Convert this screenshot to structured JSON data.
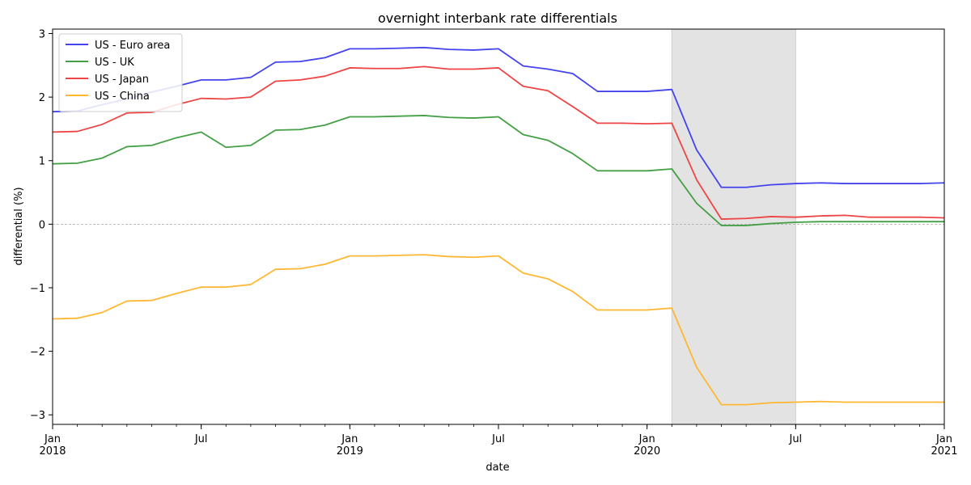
{
  "chart_data": {
    "type": "line",
    "title": "overnight interbank rate differentials",
    "xlabel": "date",
    "ylabel": "differential (%)",
    "xlim": [
      "2018-01",
      "2021-01"
    ],
    "ylim": [
      -3.15,
      3.07
    ],
    "yticks": [
      {
        "value": 3,
        "label": "3"
      },
      {
        "value": 2,
        "label": "2"
      },
      {
        "value": 1,
        "label": "1"
      },
      {
        "value": 0,
        "label": "0"
      },
      {
        "value": -1,
        "label": "−1"
      },
      {
        "value": -2,
        "label": "−2"
      },
      {
        "value": -3,
        "label": "−3"
      }
    ],
    "xticks": [
      {
        "date": "2018-01",
        "label": "Jan",
        "label2": "2018"
      },
      {
        "date": "2018-07",
        "label": "Jul",
        "label2": ""
      },
      {
        "date": "2019-01",
        "label": "Jan",
        "label2": "2019"
      },
      {
        "date": "2019-07",
        "label": "Jul",
        "label2": ""
      },
      {
        "date": "2020-01",
        "label": "Jan",
        "label2": "2020"
      },
      {
        "date": "2020-07",
        "label": "Jul",
        "label2": ""
      },
      {
        "date": "2021-01",
        "label": "Jan",
        "label2": "2021"
      }
    ],
    "zero_line": true,
    "shaded_region": {
      "start": "2020-02",
      "end": "2020-07",
      "color": "#e3e3e3"
    },
    "legend_position": "upper-left",
    "x": [
      "2018-01",
      "2018-02",
      "2018-03",
      "2018-04",
      "2018-05",
      "2018-06",
      "2018-07",
      "2018-08",
      "2018-09",
      "2018-10",
      "2018-11",
      "2018-12",
      "2019-01",
      "2019-02",
      "2019-03",
      "2019-04",
      "2019-05",
      "2019-06",
      "2019-07",
      "2019-08",
      "2019-09",
      "2019-10",
      "2019-11",
      "2019-12",
      "2020-01",
      "2020-02",
      "2020-03",
      "2020-04",
      "2020-05",
      "2020-06",
      "2020-07",
      "2020-08",
      "2020-09",
      "2020-10",
      "2020-11",
      "2020-12",
      "2021-01"
    ],
    "series": [
      {
        "name": "US - Euro area",
        "color": "#4444ee",
        "values": [
          1.77,
          1.78,
          1.88,
          1.97,
          2.08,
          2.17,
          2.27,
          2.27,
          2.31,
          2.55,
          2.56,
          2.62,
          2.76,
          2.76,
          2.77,
          2.78,
          2.75,
          2.74,
          2.76,
          2.49,
          2.44,
          2.37,
          2.09,
          2.09,
          2.09,
          2.12,
          1.17,
          0.58,
          0.58,
          0.62,
          0.64,
          0.65,
          0.64,
          0.64,
          0.64,
          0.64,
          0.65
        ]
      },
      {
        "name": "US - UK",
        "color": "#44a044",
        "values": [
          0.95,
          0.96,
          1.04,
          1.22,
          1.24,
          1.36,
          1.45,
          1.21,
          1.24,
          1.48,
          1.49,
          1.56,
          1.69,
          1.69,
          1.7,
          1.71,
          1.68,
          1.67,
          1.69,
          1.41,
          1.32,
          1.11,
          0.84,
          0.84,
          0.84,
          0.87,
          0.33,
          -0.02,
          -0.02,
          0.01,
          0.03,
          0.04,
          0.04,
          0.04,
          0.04,
          0.04,
          0.04
        ]
      },
      {
        "name": "US - Japan",
        "color": "#ee4444",
        "values": [
          1.45,
          1.46,
          1.57,
          1.75,
          1.76,
          1.88,
          1.98,
          1.97,
          2.0,
          2.25,
          2.27,
          2.33,
          2.46,
          2.45,
          2.45,
          2.48,
          2.44,
          2.44,
          2.46,
          2.17,
          2.1,
          1.85,
          1.59,
          1.59,
          1.58,
          1.59,
          0.7,
          0.08,
          0.09,
          0.12,
          0.11,
          0.13,
          0.14,
          0.11,
          0.11,
          0.11,
          0.1
        ]
      },
      {
        "name": "US - China",
        "color": "#ffb733",
        "values": [
          -1.49,
          -1.48,
          -1.39,
          -1.21,
          -1.2,
          -1.09,
          -0.99,
          -0.99,
          -0.95,
          -0.71,
          -0.7,
          -0.63,
          -0.5,
          -0.5,
          -0.49,
          -0.48,
          -0.51,
          -0.52,
          -0.5,
          -0.77,
          -0.86,
          -1.06,
          -1.35,
          -1.35,
          -1.35,
          -1.32,
          -2.25,
          -2.84,
          -2.84,
          -2.81,
          -2.8,
          -2.79,
          -2.8,
          -2.8,
          -2.8,
          -2.8,
          -2.8
        ]
      }
    ]
  }
}
